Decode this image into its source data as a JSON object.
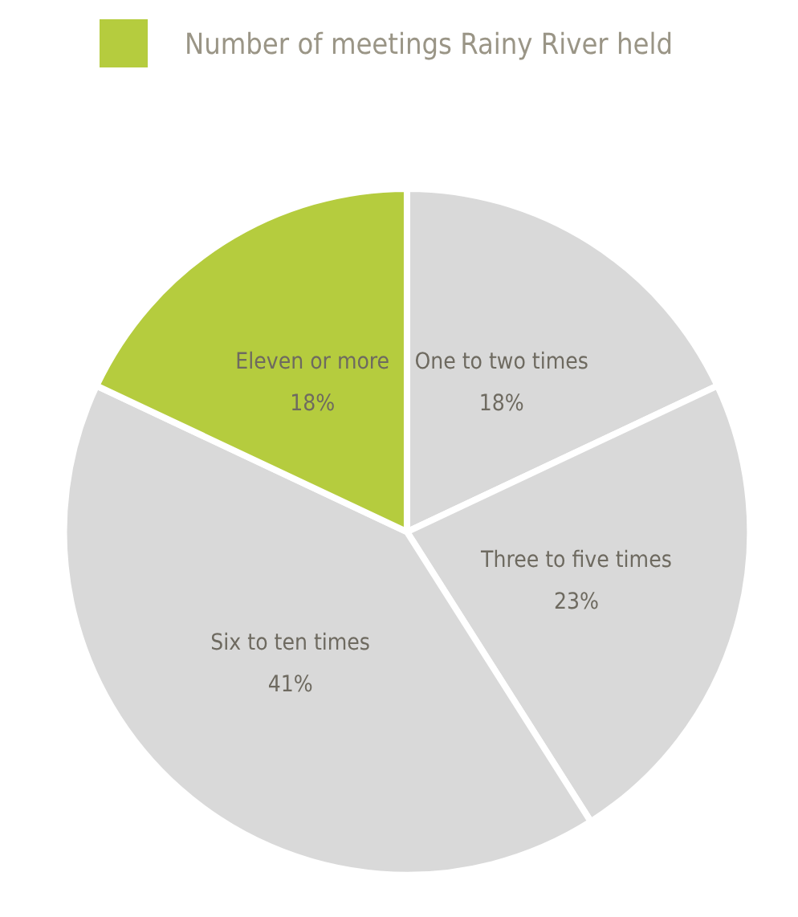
{
  "chart_data": {
    "type": "pie",
    "title": "Number of meetings Rainy River held",
    "categories": [
      "One to two times",
      "Three to five times",
      "Six to ten times",
      "Eleven or more"
    ],
    "values": [
      18,
      23,
      41,
      18
    ],
    "value_labels": [
      "18%",
      "23%",
      "41%",
      "18%"
    ],
    "colors": [
      "#d9d9d9",
      "#d9d9d9",
      "#d9d9d9",
      "#b5cc3e"
    ],
    "legend": false
  }
}
